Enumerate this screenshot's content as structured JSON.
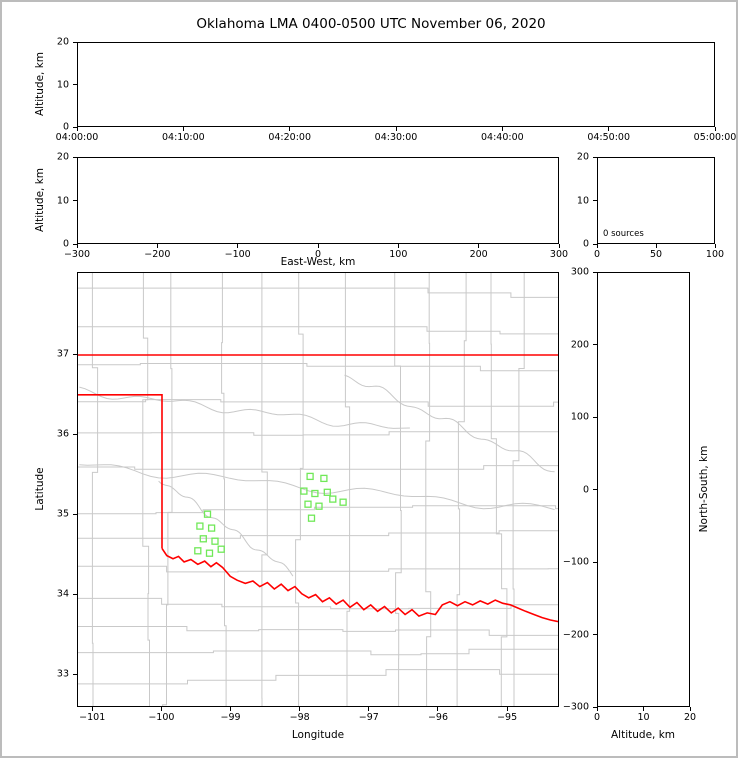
{
  "title": "Oklahoma LMA 0400-0500 UTC November 06, 2020",
  "chart_data": [
    {
      "id": "time-height",
      "type": "scatter",
      "title": "",
      "xlabel": "",
      "ylabel": "Altitude, km",
      "xlim": [
        0,
        60
      ],
      "xtick_values": [
        0,
        10,
        20,
        30,
        40,
        50,
        60
      ],
      "xtick_labels": [
        "04:00:00",
        "04:10:00",
        "04:20:00",
        "04:30:00",
        "04:40:00",
        "04:50:00",
        "05:00:00"
      ],
      "ylim": [
        0,
        20
      ],
      "ytick_values": [
        0,
        10,
        20
      ],
      "ytick_labels": [
        "0",
        "10",
        "20"
      ],
      "points": []
    },
    {
      "id": "eastwest-height",
      "type": "scatter",
      "title": "",
      "xlabel": "East-West, km",
      "ylabel": "Altitude, km",
      "xlim": [
        -300,
        300
      ],
      "xtick_values": [
        -300,
        -200,
        -100,
        0,
        100,
        200,
        300
      ],
      "xtick_labels": [
        "−300",
        "−200",
        "−100",
        "0",
        "100",
        "200",
        "300"
      ],
      "ylim": [
        0,
        20
      ],
      "ytick_values": [
        0,
        10,
        20
      ],
      "ytick_labels": [
        "0",
        "10",
        "20"
      ],
      "points": []
    },
    {
      "id": "altitude-source-histogram",
      "type": "line",
      "title": "",
      "xlabel": "",
      "ylabel": "",
      "annotation": "0 sources",
      "xlim": [
        0,
        100
      ],
      "xtick_values": [
        0,
        50,
        100
      ],
      "xtick_labels": [
        "0",
        "50",
        "100"
      ],
      "ylim": [
        0,
        20
      ],
      "ytick_values": [
        0,
        10,
        20
      ],
      "ytick_labels": [
        "0",
        "10",
        "20"
      ],
      "points": []
    },
    {
      "id": "plan-view-map",
      "type": "scatter",
      "title": "",
      "xlabel": "Longitude",
      "ylabel": "Latitude",
      "xlim": [
        -101.22,
        -94.25
      ],
      "xtick_values": [
        -101,
        -100,
        -99,
        -98,
        -97,
        -96,
        -95
      ],
      "xtick_labels": [
        "−101",
        "−100",
        "−99",
        "−98",
        "−97",
        "−96",
        "−95"
      ],
      "ylim": [
        32.59,
        38.03
      ],
      "ytick_values": [
        33,
        34,
        35,
        36,
        37
      ],
      "ytick_labels": [
        "33",
        "34",
        "35",
        "36",
        "37"
      ],
      "colors": {
        "state_border": "#ff0000",
        "county_lines": "#c9c9c9",
        "stations": "#70e858"
      },
      "stations": [
        [
          -97.85,
          35.475
        ],
        [
          -97.65,
          35.45
        ],
        [
          -97.94,
          35.29
        ],
        [
          -97.78,
          35.26
        ],
        [
          -97.6,
          35.275
        ],
        [
          -97.88,
          35.125
        ],
        [
          -97.72,
          35.1
        ],
        [
          -97.52,
          35.19
        ],
        [
          -97.37,
          35.15
        ],
        [
          -97.83,
          34.95
        ],
        [
          -99.34,
          35.0
        ],
        [
          -99.45,
          34.85
        ],
        [
          -99.28,
          34.825
        ],
        [
          -99.4,
          34.69
        ],
        [
          -99.23,
          34.66
        ],
        [
          -99.48,
          34.54
        ],
        [
          -99.31,
          34.51
        ],
        [
          -99.14,
          34.56
        ]
      ],
      "state_border": {
        "kansas_line": [
          [
            -101.22,
            37.0
          ],
          [
            -94.25,
            37.0
          ]
        ],
        "panhandle": [
          [
            -101.22,
            36.5
          ],
          [
            -100.0,
            36.5
          ],
          [
            -100.0,
            34.57
          ]
        ],
        "red_river": [
          [
            -100.0,
            34.57
          ],
          [
            -99.93,
            34.48
          ],
          [
            -99.84,
            34.44
          ],
          [
            -99.76,
            34.47
          ],
          [
            -99.68,
            34.4
          ],
          [
            -99.58,
            34.43
          ],
          [
            -99.48,
            34.37
          ],
          [
            -99.38,
            34.41
          ],
          [
            -99.29,
            34.34
          ],
          [
            -99.21,
            34.39
          ],
          [
            -99.12,
            34.33
          ],
          [
            -99.01,
            34.22
          ],
          [
            -98.91,
            34.17
          ],
          [
            -98.79,
            34.13
          ],
          [
            -98.68,
            34.16
          ],
          [
            -98.58,
            34.09
          ],
          [
            -98.47,
            34.14
          ],
          [
            -98.37,
            34.06
          ],
          [
            -98.27,
            34.12
          ],
          [
            -98.17,
            34.04
          ],
          [
            -98.07,
            34.09
          ],
          [
            -97.97,
            34.0
          ],
          [
            -97.87,
            33.95
          ],
          [
            -97.77,
            33.99
          ],
          [
            -97.67,
            33.9
          ],
          [
            -97.57,
            33.95
          ],
          [
            -97.47,
            33.87
          ],
          [
            -97.37,
            33.92
          ],
          [
            -97.27,
            33.83
          ],
          [
            -97.17,
            33.89
          ],
          [
            -97.07,
            33.8
          ],
          [
            -96.97,
            33.86
          ],
          [
            -96.87,
            33.78
          ],
          [
            -96.77,
            33.84
          ],
          [
            -96.67,
            33.76
          ],
          [
            -96.57,
            33.82
          ],
          [
            -96.47,
            33.74
          ],
          [
            -96.37,
            33.8
          ],
          [
            -96.27,
            33.72
          ],
          [
            -96.15,
            33.76
          ],
          [
            -96.03,
            33.74
          ],
          [
            -95.93,
            33.86
          ],
          [
            -95.82,
            33.9
          ],
          [
            -95.71,
            33.85
          ],
          [
            -95.6,
            33.9
          ],
          [
            -95.49,
            33.86
          ],
          [
            -95.38,
            33.91
          ],
          [
            -95.27,
            33.87
          ],
          [
            -95.16,
            33.92
          ],
          [
            -95.05,
            33.88
          ],
          [
            -94.94,
            33.86
          ],
          [
            -94.83,
            33.82
          ],
          [
            -94.72,
            33.78
          ],
          [
            -94.6,
            33.74
          ],
          [
            -94.48,
            33.7
          ],
          [
            -94.36,
            33.67
          ],
          [
            -94.25,
            33.65
          ]
        ]
      }
    },
    {
      "id": "northsouth-height",
      "type": "scatter",
      "title": "",
      "xlabel": "Altitude, km",
      "ylabel": "North-South, km",
      "xlim": [
        0,
        20
      ],
      "xtick_values": [
        0,
        10,
        20
      ],
      "xtick_labels": [
        "0",
        "10",
        "20"
      ],
      "ylim": [
        -300,
        300
      ],
      "ytick_values": [
        -300,
        -200,
        -100,
        0,
        100,
        200,
        300
      ],
      "ytick_labels": [
        "−300",
        "−200",
        "−100",
        "0",
        "100",
        "200",
        "300"
      ],
      "points": []
    }
  ]
}
